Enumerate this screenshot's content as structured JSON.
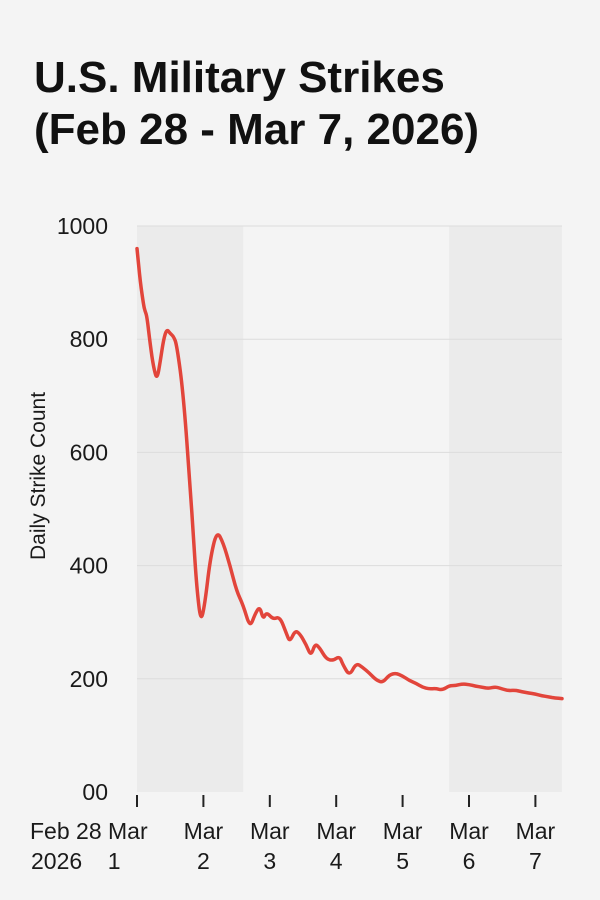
{
  "title_line1": "U.S. Military Strikes",
  "title_line2": "(Feb 28 - Mar 7, 2026)",
  "colors": {
    "line": "#e2453b",
    "grid": "#dcdcdc",
    "background": "#f4f4f4",
    "shade": "#ebebeb",
    "text": "#111111"
  },
  "chart_data": {
    "type": "line",
    "title": "U.S. Military Strikes (Feb 28 - Mar 7, 2026)",
    "xlabel": "",
    "ylabel": "Daily Strike Count",
    "ylim": [
      0,
      1000
    ],
    "yticks": [
      {
        "value": 0,
        "label": "00"
      },
      {
        "value": 200,
        "label": "200"
      },
      {
        "value": 400,
        "label": "400"
      },
      {
        "value": 600,
        "label": "600"
      },
      {
        "value": 800,
        "label": "800"
      },
      {
        "value": 1000,
        "label": "1000"
      }
    ],
    "xlim": [
      0,
      6.4
    ],
    "xticks": [
      {
        "value": 0,
        "line1": "Feb 28 Mar",
        "line2": "2026    1"
      },
      {
        "value": 1,
        "line1": "Mar",
        "line2": "2"
      },
      {
        "value": 2,
        "line1": "Mar",
        "line2": "3"
      },
      {
        "value": 3,
        "line1": "Mar",
        "line2": "4"
      },
      {
        "value": 4,
        "line1": "Mar",
        "line2": "5"
      },
      {
        "value": 5,
        "line1": "Mar",
        "line2": "6"
      },
      {
        "value": 6,
        "line1": "Mar",
        "line2": "7"
      }
    ],
    "grid": true,
    "shaded_ranges": [
      [
        0,
        1.6
      ],
      [
        4.7,
        6.4
      ]
    ],
    "series": [
      {
        "color": "#e2453b",
        "points": [
          [
            0.0,
            960
          ],
          [
            0.05,
            900
          ],
          [
            0.1,
            860
          ],
          [
            0.12,
            850
          ],
          [
            0.15,
            840
          ],
          [
            0.2,
            790
          ],
          [
            0.25,
            750
          ],
          [
            0.3,
            728
          ],
          [
            0.35,
            760
          ],
          [
            0.4,
            800
          ],
          [
            0.45,
            818
          ],
          [
            0.5,
            810
          ],
          [
            0.55,
            805
          ],
          [
            0.6,
            790
          ],
          [
            0.7,
            700
          ],
          [
            0.8,
            540
          ],
          [
            0.85,
            450
          ],
          [
            0.9,
            360
          ],
          [
            0.96,
            300
          ],
          [
            1.02,
            330
          ],
          [
            1.1,
            410
          ],
          [
            1.2,
            462
          ],
          [
            1.3,
            440
          ],
          [
            1.4,
            400
          ],
          [
            1.5,
            355
          ],
          [
            1.6,
            330
          ],
          [
            1.7,
            290
          ],
          [
            1.78,
            315
          ],
          [
            1.85,
            328
          ],
          [
            1.9,
            305
          ],
          [
            1.95,
            318
          ],
          [
            2.05,
            305
          ],
          [
            2.15,
            310
          ],
          [
            2.25,
            280
          ],
          [
            2.3,
            265
          ],
          [
            2.38,
            285
          ],
          [
            2.45,
            280
          ],
          [
            2.55,
            260
          ],
          [
            2.62,
            240
          ],
          [
            2.68,
            262
          ],
          [
            2.75,
            255
          ],
          [
            2.85,
            235
          ],
          [
            2.95,
            232
          ],
          [
            3.05,
            240
          ],
          [
            3.1,
            225
          ],
          [
            3.2,
            205
          ],
          [
            3.3,
            228
          ],
          [
            3.4,
            220
          ],
          [
            3.5,
            210
          ],
          [
            3.6,
            198
          ],
          [
            3.7,
            193
          ],
          [
            3.8,
            207
          ],
          [
            3.9,
            210
          ],
          [
            4.0,
            205
          ],
          [
            4.1,
            197
          ],
          [
            4.2,
            192
          ],
          [
            4.3,
            185
          ],
          [
            4.4,
            182
          ],
          [
            4.5,
            183
          ],
          [
            4.6,
            180
          ],
          [
            4.7,
            188
          ],
          [
            4.8,
            188
          ],
          [
            4.9,
            191
          ],
          [
            5.0,
            190
          ],
          [
            5.1,
            187
          ],
          [
            5.2,
            185
          ],
          [
            5.3,
            183
          ],
          [
            5.4,
            186
          ],
          [
            5.5,
            182
          ],
          [
            5.6,
            179
          ],
          [
            5.7,
            180
          ],
          [
            5.8,
            177
          ],
          [
            5.9,
            175
          ],
          [
            6.0,
            173
          ],
          [
            6.1,
            170
          ],
          [
            6.2,
            168
          ],
          [
            6.3,
            166
          ],
          [
            6.4,
            165
          ]
        ]
      }
    ]
  }
}
